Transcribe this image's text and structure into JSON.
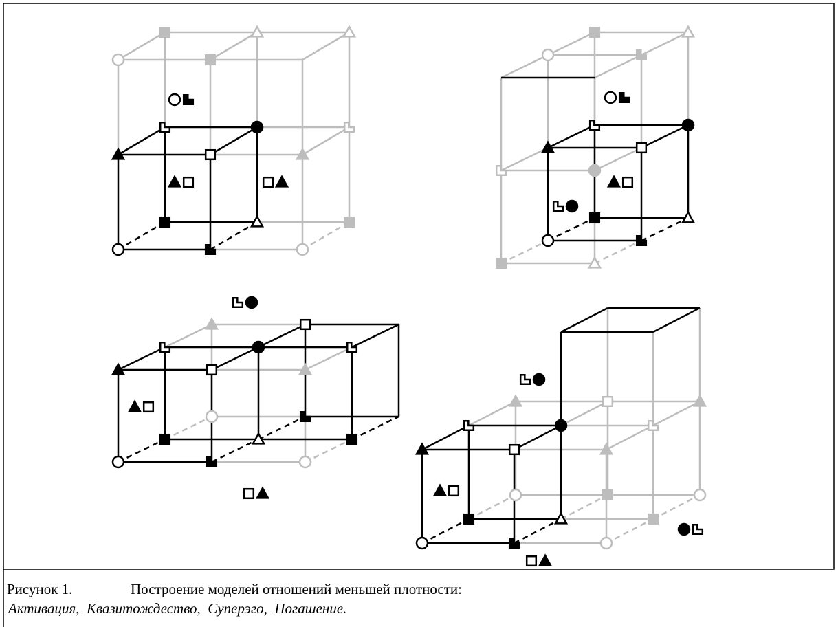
{
  "caption": {
    "label": "Рисунок 1.",
    "title": "Построение моделей отношений меньшей плотности:",
    "subtitle": "Активация,  Квазитождество,  Суперэго,  Погашение."
  }
}
